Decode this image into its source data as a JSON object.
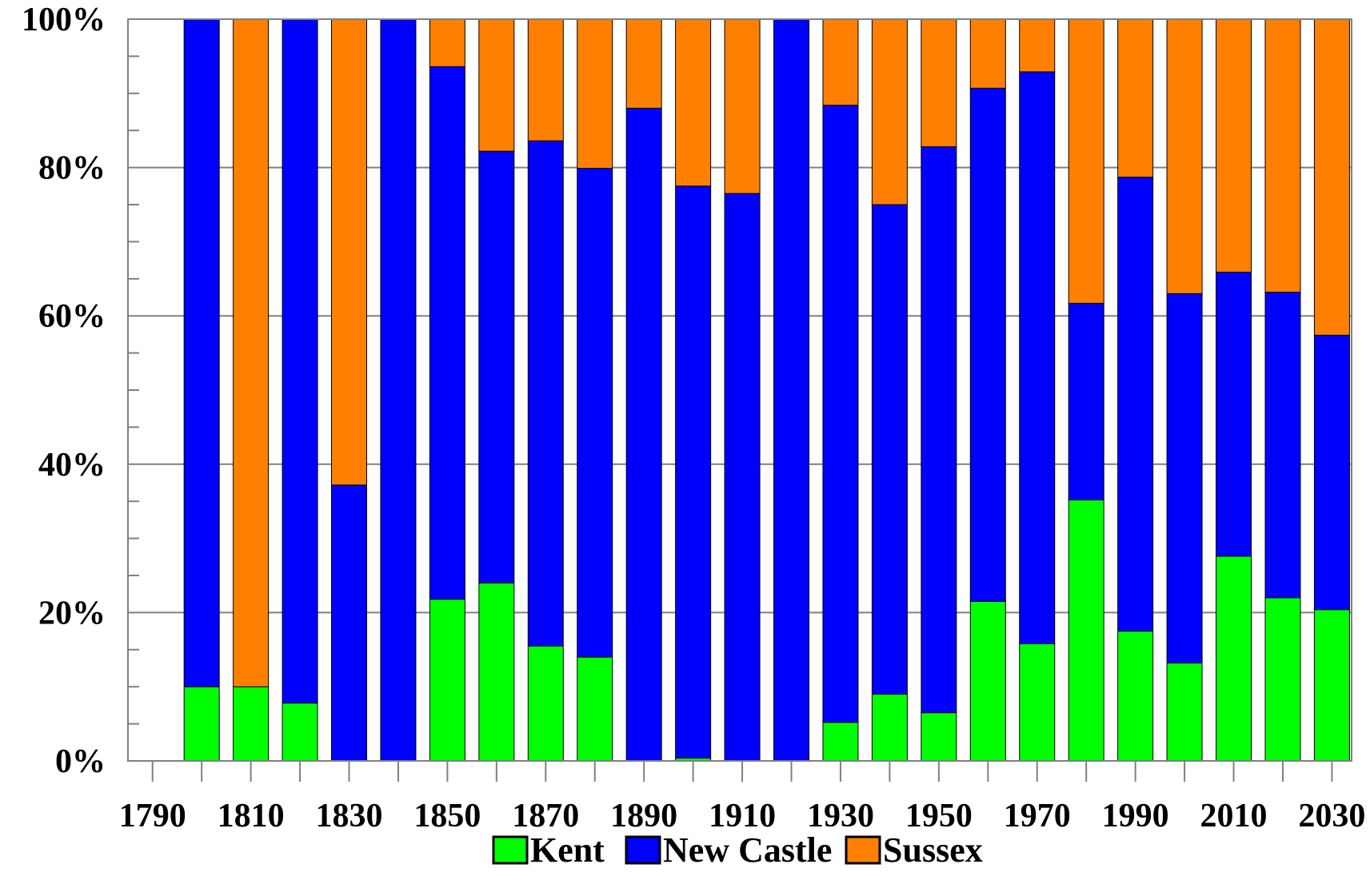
{
  "chart_data": {
    "type": "bar",
    "stacked": true,
    "normalized": true,
    "title": "",
    "xlabel": "",
    "ylabel": "",
    "ylim": [
      0,
      100
    ],
    "y_tick_labels": [
      "0%",
      "20%",
      "40%",
      "60%",
      "80%",
      "100%"
    ],
    "x_tick_labels": [
      "1790",
      "1810",
      "1830",
      "1850",
      "1870",
      "1890",
      "1910",
      "1930",
      "1950",
      "1970",
      "1990",
      "2010",
      "2030"
    ],
    "x_ticks": [
      1790,
      1810,
      1830,
      1850,
      1870,
      1890,
      1910,
      1930,
      1950,
      1970,
      1990,
      2010,
      2030
    ],
    "xlim": [
      1785,
      2034
    ],
    "grid": "horizontal",
    "legend_position": "bottom",
    "categories": [
      1800,
      1810,
      1820,
      1830,
      1840,
      1850,
      1860,
      1870,
      1880,
      1890,
      1900,
      1910,
      1920,
      1930,
      1940,
      1950,
      1960,
      1970,
      1980,
      1990,
      2000,
      2010,
      2020,
      2030
    ],
    "series": [
      {
        "name": "Kent",
        "color": "#00ff00",
        "values": [
          10.0,
          10.0,
          7.8,
          0,
          0,
          21.8,
          24.0,
          15.5,
          14.0,
          0,
          0.4,
          0,
          0,
          5.2,
          9.0,
          6.5,
          21.5,
          15.8,
          35.2,
          17.5,
          13.2,
          27.6,
          22.0,
          20.4
        ]
      },
      {
        "name": "New Castle",
        "color": "#0000ff",
        "values": [
          90.0,
          0,
          92.2,
          37.2,
          100.0,
          71.8,
          58.2,
          68.1,
          65.9,
          88.0,
          77.1,
          76.5,
          100.0,
          83.2,
          66.0,
          76.3,
          69.2,
          77.1,
          26.5,
          61.2,
          49.8,
          38.3,
          41.2,
          37.0
        ]
      },
      {
        "name": "Sussex",
        "color": "#ff8000",
        "values": [
          0,
          90.0,
          0,
          62.8,
          0,
          6.4,
          17.8,
          16.4,
          20.1,
          12.0,
          22.5,
          23.5,
          0,
          11.6,
          25.0,
          17.2,
          9.3,
          7.1,
          38.3,
          21.3,
          37.0,
          34.1,
          36.8,
          42.6
        ]
      }
    ]
  }
}
